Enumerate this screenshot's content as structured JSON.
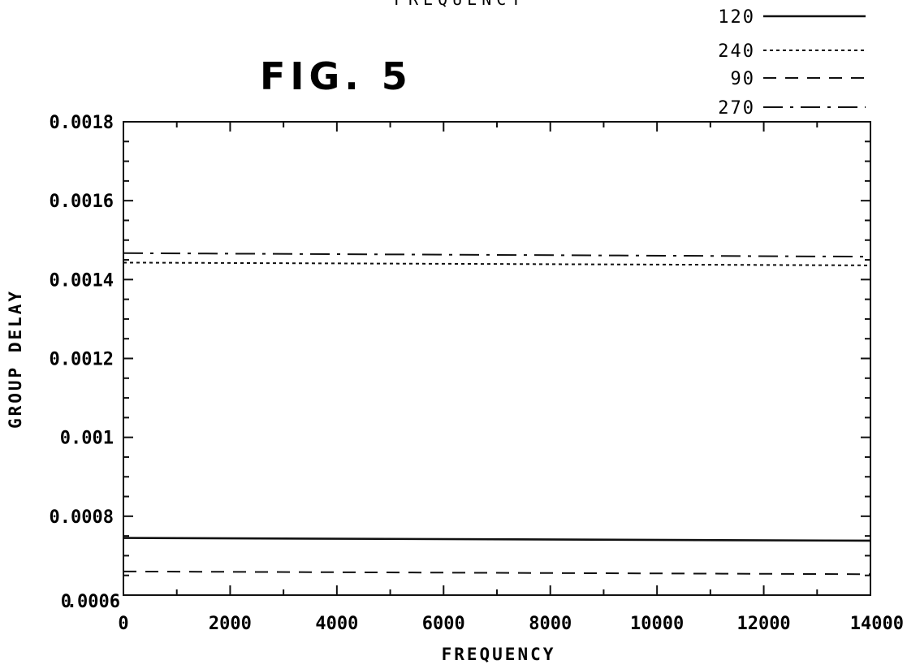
{
  "header": {
    "cut_text": "FREQUENCY",
    "figure_title": "FIG. 5"
  },
  "chart_data": {
    "type": "line",
    "title": "",
    "xlabel": "FREQUENCY",
    "ylabel": "GROUP DELAY",
    "xlim": [
      0,
      14000
    ],
    "ylim": [
      0.0006,
      0.0018
    ],
    "x_ticks": [
      0,
      2000,
      4000,
      6000,
      8000,
      10000,
      12000,
      14000
    ],
    "x_tick_labels": [
      "0",
      "2000",
      "4000",
      "6000",
      "8000",
      "10000",
      "12000",
      "14000"
    ],
    "y_ticks": [
      0.0006,
      0.0008,
      0.001,
      0.0012,
      0.0014,
      0.0016,
      0.0018
    ],
    "y_tick_labels": [
      ".0006",
      "0.0008",
      "0.001",
      "0.0012",
      "0.0014",
      "0.0016",
      "0.0018"
    ],
    "y_tick_prefix_label": "0",
    "legend_position": "top-right",
    "grid": false,
    "line_color": "#111111",
    "series": [
      {
        "name": "120",
        "style": "solid",
        "x": [
          0,
          14000
        ],
        "y": [
          0.000745,
          0.000738
        ]
      },
      {
        "name": "240",
        "style": "dotted",
        "x": [
          0,
          14000
        ],
        "y": [
          0.001443,
          0.001436
        ]
      },
      {
        "name": "90",
        "style": "dashed",
        "x": [
          0,
          14000
        ],
        "y": [
          0.00066,
          0.000653
        ]
      },
      {
        "name": "270",
        "style": "dash-dot",
        "x": [
          0,
          14000
        ],
        "y": [
          0.001467,
          0.001458
        ]
      }
    ]
  }
}
